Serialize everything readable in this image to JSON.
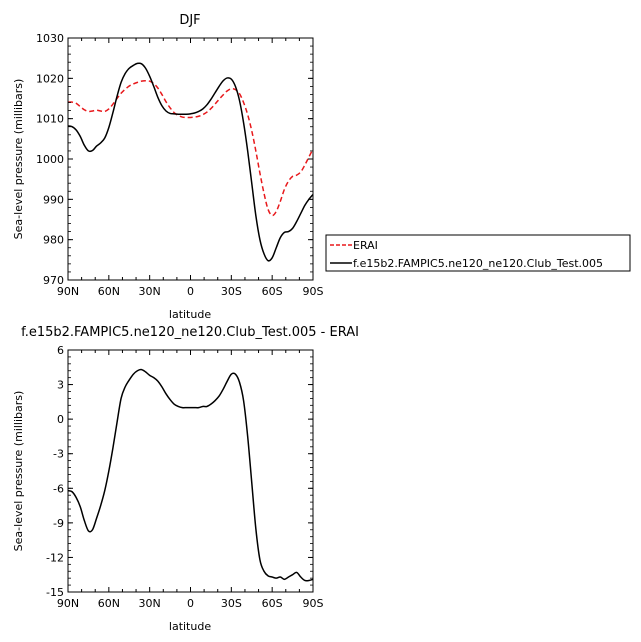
{
  "chart_data": [
    {
      "type": "line",
      "title": "DJF",
      "xlabel": "latitude",
      "ylabel": "Sea-level pressure (millibars)",
      "xlim": [
        90,
        -90
      ],
      "ylim": [
        970,
        1030
      ],
      "xticks": [
        "90N",
        "60N",
        "30N",
        "0",
        "30S",
        "60S",
        "90S"
      ],
      "yticks": [
        "970",
        "980",
        "990",
        "1000",
        "1010",
        "1020",
        "1030"
      ],
      "legend_position": "right",
      "series": [
        {
          "name": "ERAI",
          "color": "#e8191c",
          "dash": "dashed",
          "x": [
            90,
            87,
            84,
            81,
            78,
            75,
            72,
            69,
            66,
            63,
            60,
            57,
            54,
            51,
            48,
            45,
            42,
            39,
            36,
            33,
            30,
            27,
            24,
            21,
            18,
            15,
            12,
            9,
            6,
            3,
            0,
            -3,
            -6,
            -9,
            -12,
            -15,
            -18,
            -21,
            -24,
            -27,
            -30,
            -33,
            -36,
            -39,
            -42,
            -45,
            -48,
            -51,
            -54,
            -57,
            -60,
            -63,
            -66,
            -69,
            -72,
            -75,
            -78,
            -81,
            -84,
            -87,
            -90
          ],
          "y": [
            1014.1,
            1014.1,
            1013.8,
            1013.0,
            1012.2,
            1011.8,
            1011.9,
            1012.1,
            1011.9,
            1011.8,
            1012.4,
            1013.6,
            1015.0,
            1016.3,
            1017.3,
            1018.1,
            1018.6,
            1019.0,
            1019.3,
            1019.4,
            1019.3,
            1018.7,
            1017.6,
            1016.0,
            1014.2,
            1012.7,
            1011.5,
            1010.8,
            1010.4,
            1010.3,
            1010.3,
            1010.4,
            1010.6,
            1011.0,
            1011.6,
            1012.5,
            1013.6,
            1014.8,
            1015.9,
            1016.9,
            1017.4,
            1017.2,
            1016.2,
            1014.0,
            1011.0,
            1007.0,
            1002.0,
            996.5,
            991.5,
            987.5,
            986.0,
            987.0,
            989.5,
            992.5,
            994.5,
            995.7,
            996.0,
            996.8,
            998.5,
            1000.5,
            1002.5
          ]
        },
        {
          "name": "f.e15b2.FAMPIC5.ne120_ne120.Club_Test.005",
          "color": "#000000",
          "dash": "solid",
          "x": [
            90,
            87,
            84,
            81,
            78,
            75,
            72,
            69,
            66,
            63,
            60,
            57,
            54,
            51,
            48,
            45,
            42,
            39,
            36,
            33,
            30,
            27,
            24,
            21,
            18,
            15,
            12,
            9,
            6,
            3,
            0,
            -3,
            -6,
            -9,
            -12,
            -15,
            -18,
            -21,
            -24,
            -27,
            -30,
            -33,
            -36,
            -39,
            -42,
            -45,
            -48,
            -51,
            -54,
            -57,
            -60,
            -63,
            -66,
            -69,
            -72,
            -75,
            -78,
            -81,
            -84,
            -87,
            -90
          ],
          "y": [
            1008.2,
            1008.0,
            1007.2,
            1005.6,
            1003.4,
            1002.0,
            1002.1,
            1003.2,
            1004.0,
            1005.2,
            1007.8,
            1011.5,
            1015.5,
            1019.0,
            1021.2,
            1022.5,
            1023.2,
            1023.7,
            1023.6,
            1022.5,
            1020.5,
            1018.0,
            1015.3,
            1013.2,
            1011.9,
            1011.3,
            1011.2,
            1011.1,
            1011.1,
            1011.1,
            1011.2,
            1011.4,
            1011.8,
            1012.4,
            1013.4,
            1014.8,
            1016.4,
            1018.0,
            1019.4,
            1020.1,
            1019.8,
            1018.0,
            1014.5,
            1009.0,
            1002.0,
            994.0,
            986.0,
            980.0,
            976.5,
            974.8,
            975.5,
            978.0,
            980.5,
            981.8,
            982.0,
            982.8,
            984.5,
            986.5,
            988.5,
            990.0,
            991.2
          ]
        }
      ]
    },
    {
      "type": "line",
      "title": "f.e15b2.FAMPIC5.ne120_ne120.Club_Test.005 - ERAI",
      "xlabel": "latitude",
      "ylabel": "Sea-level pressure (millibars)",
      "xlim": [
        90,
        -90
      ],
      "ylim": [
        -15,
        6
      ],
      "xticks": [
        "90N",
        "60N",
        "30N",
        "0",
        "30S",
        "60S",
        "90S"
      ],
      "yticks": [
        "-15",
        "-12",
        "-9",
        "-6",
        "-3",
        "0",
        "3",
        "6"
      ],
      "series": [
        {
          "color": "#000000",
          "dash": "solid",
          "x": [
            90,
            87,
            84,
            81,
            78,
            75,
            72,
            69,
            66,
            63,
            60,
            57,
            54,
            51,
            48,
            45,
            42,
            39,
            36,
            33,
            30,
            27,
            24,
            21,
            18,
            15,
            12,
            9,
            6,
            3,
            0,
            -3,
            -6,
            -9,
            -12,
            -15,
            -18,
            -21,
            -24,
            -27,
            -30,
            -33,
            -36,
            -39,
            -42,
            -45,
            -48,
            -51,
            -54,
            -57,
            -60,
            -63,
            -66,
            -69,
            -72,
            -75,
            -78,
            -81,
            -84,
            -87,
            -90
          ],
          "y": [
            -6.2,
            -6.3,
            -6.8,
            -7.6,
            -8.8,
            -9.7,
            -9.6,
            -8.6,
            -7.5,
            -6.2,
            -4.5,
            -2.5,
            -0.3,
            1.8,
            2.8,
            3.4,
            3.9,
            4.2,
            4.3,
            4.1,
            3.8,
            3.6,
            3.3,
            2.8,
            2.2,
            1.7,
            1.3,
            1.1,
            1.0,
            1.0,
            1.0,
            1.0,
            1.0,
            1.1,
            1.1,
            1.3,
            1.6,
            2.0,
            2.6,
            3.3,
            3.9,
            3.9,
            3.2,
            1.6,
            -1.5,
            -5.5,
            -9.5,
            -12.2,
            -13.2,
            -13.6,
            -13.7,
            -13.8,
            -13.7,
            -13.9,
            -13.7,
            -13.5,
            -13.3,
            -13.7,
            -14.0,
            -14.0,
            -13.9
          ]
        }
      ]
    }
  ]
}
